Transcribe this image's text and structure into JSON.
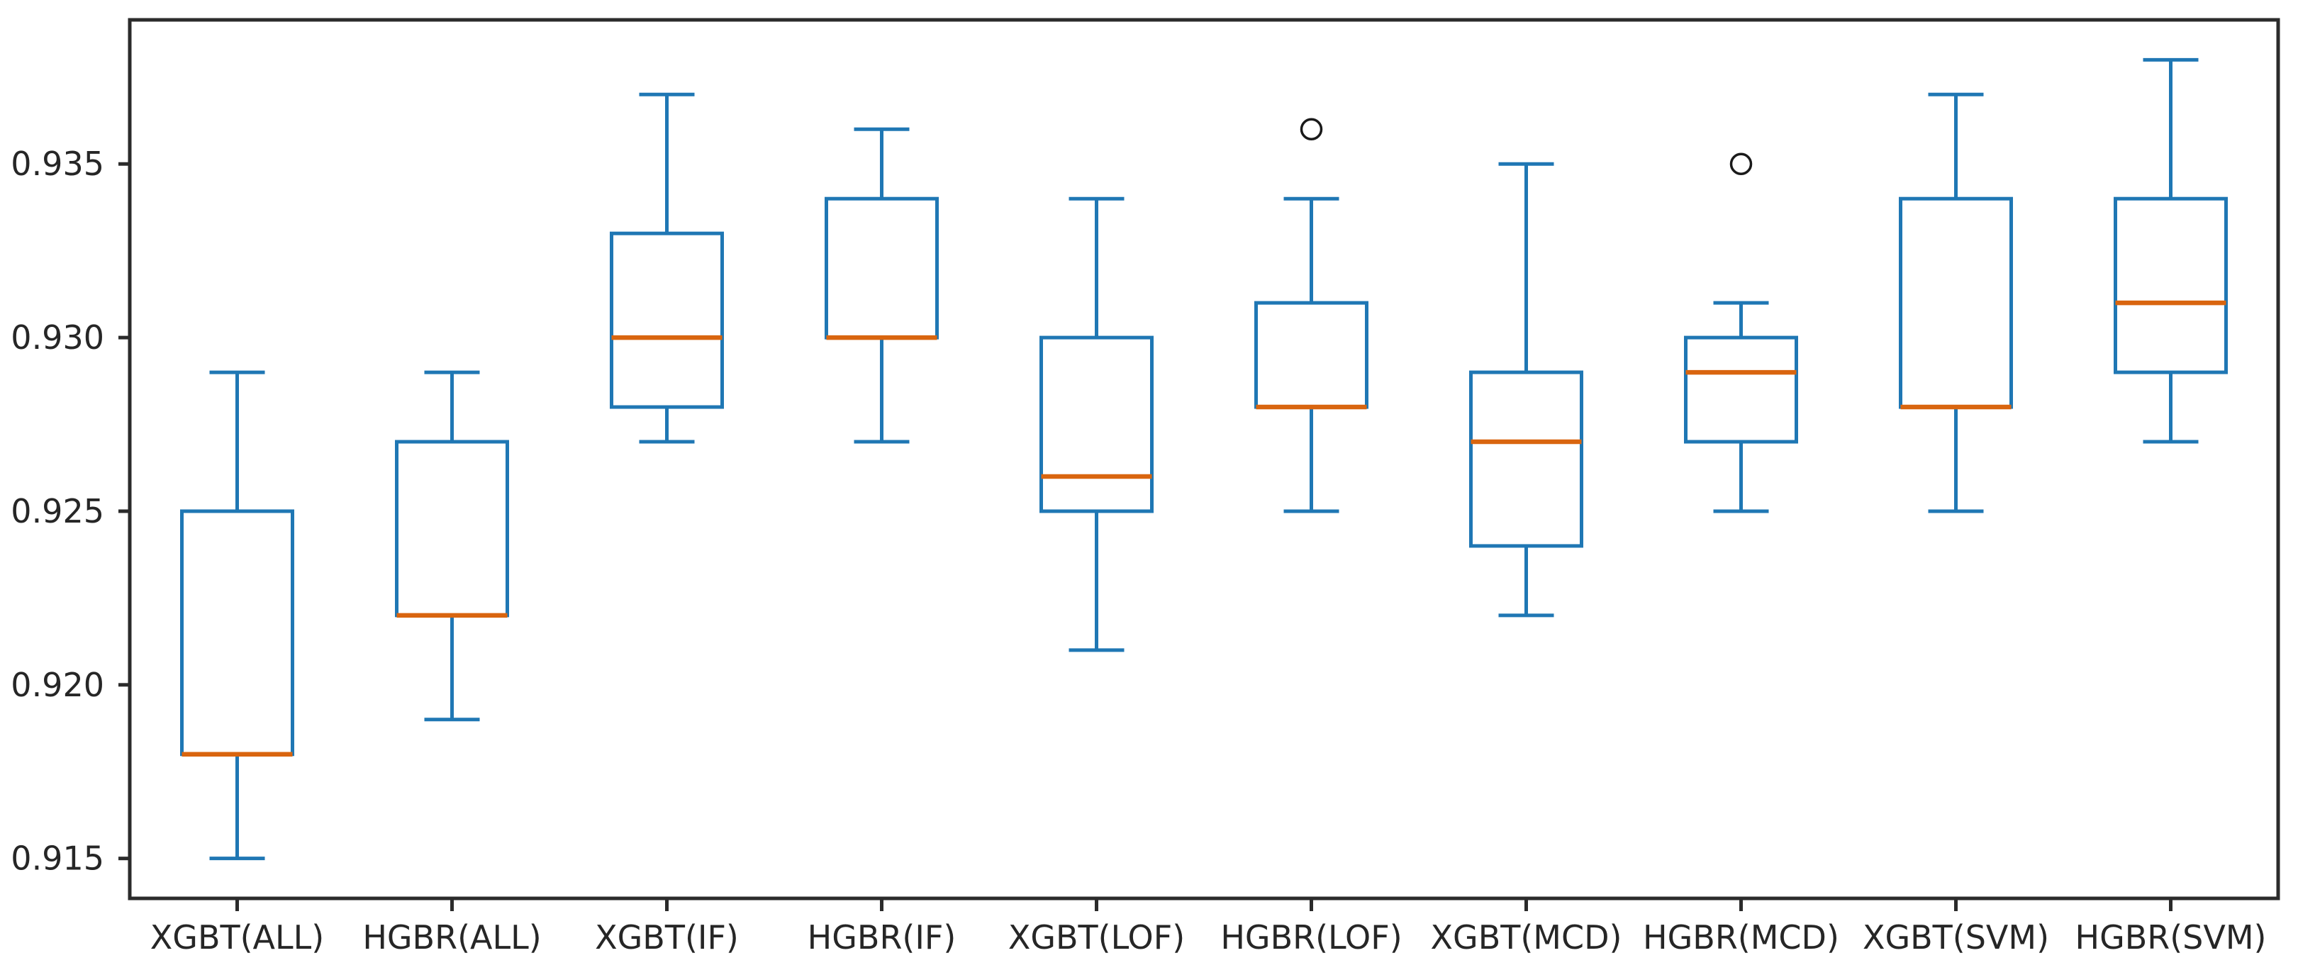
{
  "chart_data": {
    "type": "boxplot",
    "title": "",
    "xlabel": "",
    "ylabel": "",
    "grid": false,
    "legend": null,
    "categories": [
      "XGBT(ALL)",
      "HGBR(ALL)",
      "XGBT(IF)",
      "HGBR(IF)",
      "XGBT(LOF)",
      "HGBR(LOF)",
      "XGBT(MCD)",
      "HGBR(MCD)",
      "XGBT(SVM)",
      "HGBR(SVM)"
    ],
    "series": [
      {
        "name": "XGBT(ALL)",
        "whislo": 0.915,
        "q1": 0.918,
        "med": 0.918,
        "q3": 0.925,
        "whishi": 0.929,
        "fliers": []
      },
      {
        "name": "HGBR(ALL)",
        "whislo": 0.919,
        "q1": 0.922,
        "med": 0.922,
        "q3": 0.927,
        "whishi": 0.929,
        "fliers": []
      },
      {
        "name": "XGBT(IF)",
        "whislo": 0.927,
        "q1": 0.928,
        "med": 0.93,
        "q3": 0.933,
        "whishi": 0.937,
        "fliers": []
      },
      {
        "name": "HGBR(IF)",
        "whislo": 0.927,
        "q1": 0.93,
        "med": 0.93,
        "q3": 0.934,
        "whishi": 0.936,
        "fliers": []
      },
      {
        "name": "XGBT(LOF)",
        "whislo": 0.921,
        "q1": 0.925,
        "med": 0.926,
        "q3": 0.93,
        "whishi": 0.934,
        "fliers": []
      },
      {
        "name": "HGBR(LOF)",
        "whislo": 0.925,
        "q1": 0.928,
        "med": 0.928,
        "q3": 0.931,
        "whishi": 0.934,
        "fliers": [
          0.936
        ]
      },
      {
        "name": "XGBT(MCD)",
        "whislo": 0.922,
        "q1": 0.924,
        "med": 0.927,
        "q3": 0.929,
        "whishi": 0.935,
        "fliers": []
      },
      {
        "name": "HGBR(MCD)",
        "whislo": 0.925,
        "q1": 0.927,
        "med": 0.929,
        "q3": 0.93,
        "whishi": 0.931,
        "fliers": [
          0.935
        ]
      },
      {
        "name": "XGBT(SVM)",
        "whislo": 0.925,
        "q1": 0.928,
        "med": 0.928,
        "q3": 0.934,
        "whishi": 0.937,
        "fliers": []
      },
      {
        "name": "HGBR(SVM)",
        "whislo": 0.927,
        "q1": 0.929,
        "med": 0.931,
        "q3": 0.934,
        "whishi": 0.938,
        "fliers": []
      }
    ],
    "yticks": [
      0.915,
      0.92,
      0.925,
      0.93,
      0.935
    ],
    "ytick_labels": [
      "0.915",
      "0.920",
      "0.925",
      "0.930",
      "0.935"
    ],
    "ylim": [
      0.91385,
      0.93915
    ],
    "legend_position": "none",
    "colors": {
      "box": "#1f77b4",
      "median": "#d9650f",
      "flier": "#1a1a1a",
      "spine": "#2b2b2b",
      "text": "#262626",
      "background": "#ffffff"
    }
  }
}
